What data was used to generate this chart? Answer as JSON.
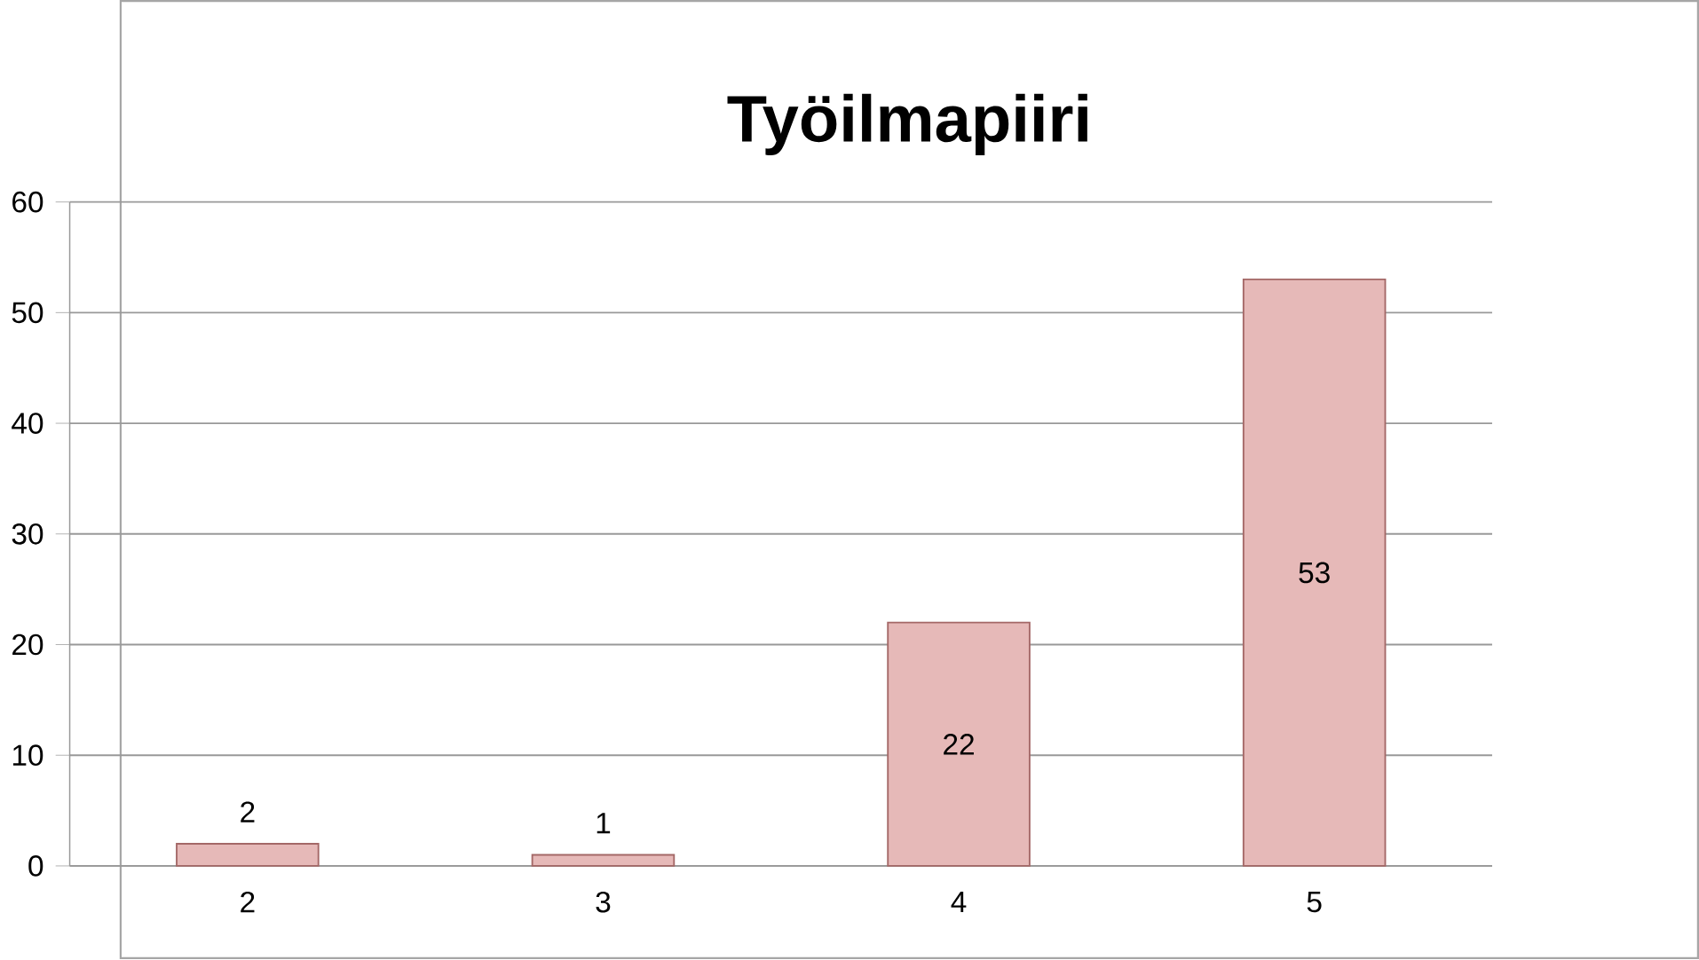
{
  "chart_data": {
    "type": "bar",
    "title": "Työilmapiiri",
    "categories": [
      "2",
      "3",
      "4",
      "5"
    ],
    "values": [
      2,
      1,
      22,
      53
    ],
    "color": "#e6b9b8",
    "ylim": [
      0,
      60
    ],
    "yticks": [
      0,
      10,
      20,
      30,
      40,
      50,
      60
    ],
    "grid": "y",
    "data_labels": true
  }
}
